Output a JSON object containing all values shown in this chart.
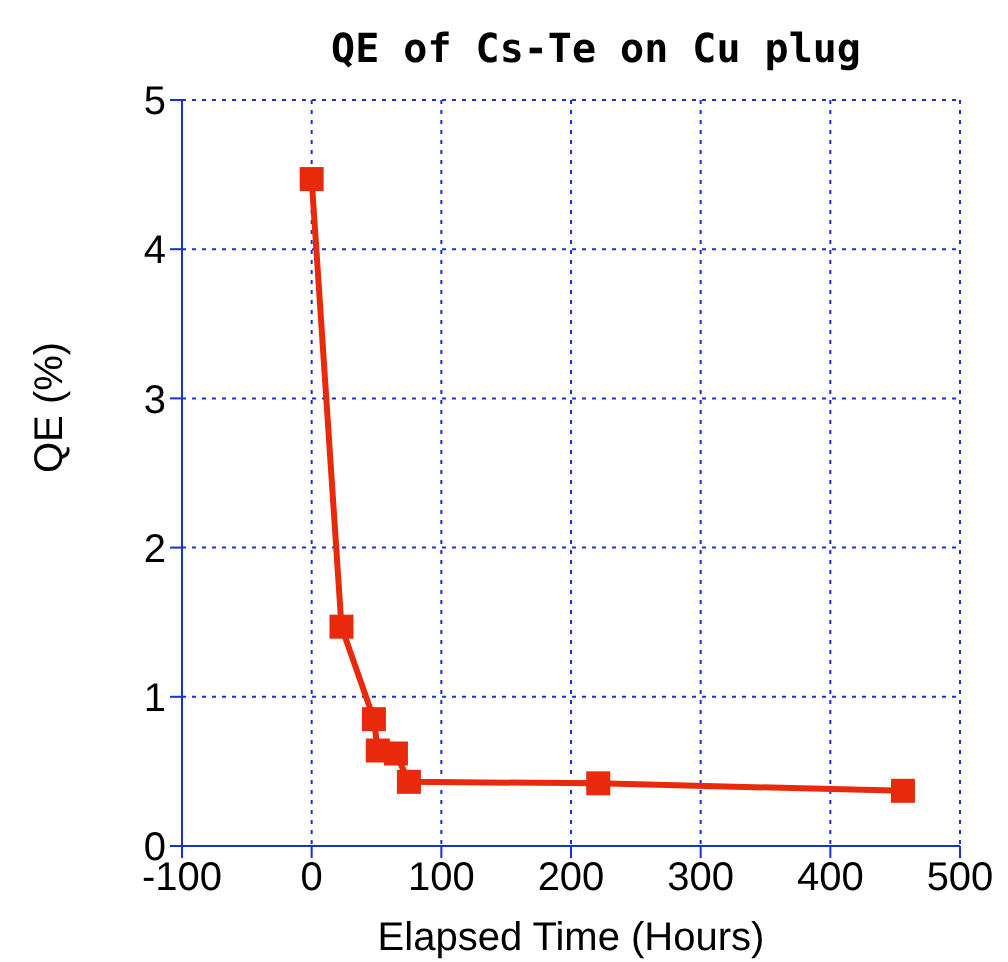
{
  "chart_data": {
    "type": "line",
    "title": "QE of Cs-Te on Cu plug",
    "xlabel": "Elapsed Time (Hours)",
    "ylabel": "QE (%)",
    "x": [
      0,
      23,
      48,
      51,
      65,
      75,
      221,
      456
    ],
    "series": [
      {
        "color": "#e8290b",
        "values": [
          4.47,
          1.47,
          0.85,
          0.64,
          0.62,
          0.43,
          0.42,
          0.37
        ]
      }
    ],
    "xlim": [
      -100,
      500
    ],
    "xticks": [
      -100,
      0,
      100,
      200,
      300,
      400,
      500
    ],
    "ylim": [
      0,
      5
    ],
    "yticks": [
      0,
      1,
      2,
      3,
      4,
      5
    ],
    "grid": true,
    "marker": "square",
    "line_style": "solid"
  }
}
